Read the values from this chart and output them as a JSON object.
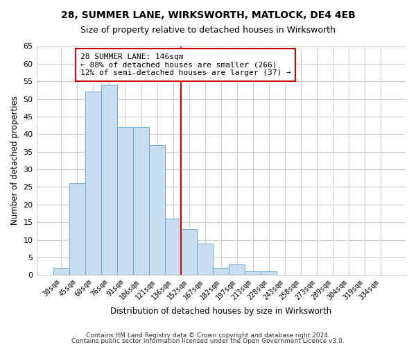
{
  "title": "28, SUMMER LANE, WIRKSWORTH, MATLOCK, DE4 4EB",
  "subtitle": "Size of property relative to detached houses in Wirksworth",
  "xlabel": "Distribution of detached houses by size in Wirksworth",
  "ylabel": "Number of detached properties",
  "bar_labels": [
    "30sqm",
    "45sqm",
    "60sqm",
    "76sqm",
    "91sqm",
    "106sqm",
    "121sqm",
    "136sqm",
    "152sqm",
    "167sqm",
    "182sqm",
    "197sqm",
    "213sqm",
    "228sqm",
    "243sqm",
    "258sqm",
    "273sqm",
    "289sqm",
    "304sqm",
    "319sqm",
    "334sqm"
  ],
  "bar_heights": [
    2,
    26,
    52,
    54,
    42,
    42,
    37,
    16,
    13,
    9,
    2,
    3,
    1,
    1,
    0,
    0,
    0,
    0,
    0,
    0,
    0
  ],
  "bar_color": "#c8ddf0",
  "bar_edge_color": "#6ea8d8",
  "vline_position": 8,
  "vline_color": "#cc0000",
  "ylim": [
    0,
    65
  ],
  "yticks": [
    0,
    5,
    10,
    15,
    20,
    25,
    30,
    35,
    40,
    45,
    50,
    55,
    60,
    65
  ],
  "annotation_title": "28 SUMMER LANE: 146sqm",
  "annotation_line1": "← 88% of detached houses are smaller (266)",
  "annotation_line2": "12% of semi-detached houses are larger (37) →",
  "annotation_box_color": "#ffffff",
  "annotation_box_edge": "#cc0000",
  "footer1": "Contains HM Land Registry data © Crown copyright and database right 2024.",
  "footer2": "Contains public sector information licensed under the Open Government Licence v3.0.",
  "background_color": "#ffffff",
  "grid_color": "#cccccc",
  "title_fontsize": 10,
  "subtitle_fontsize": 9
}
